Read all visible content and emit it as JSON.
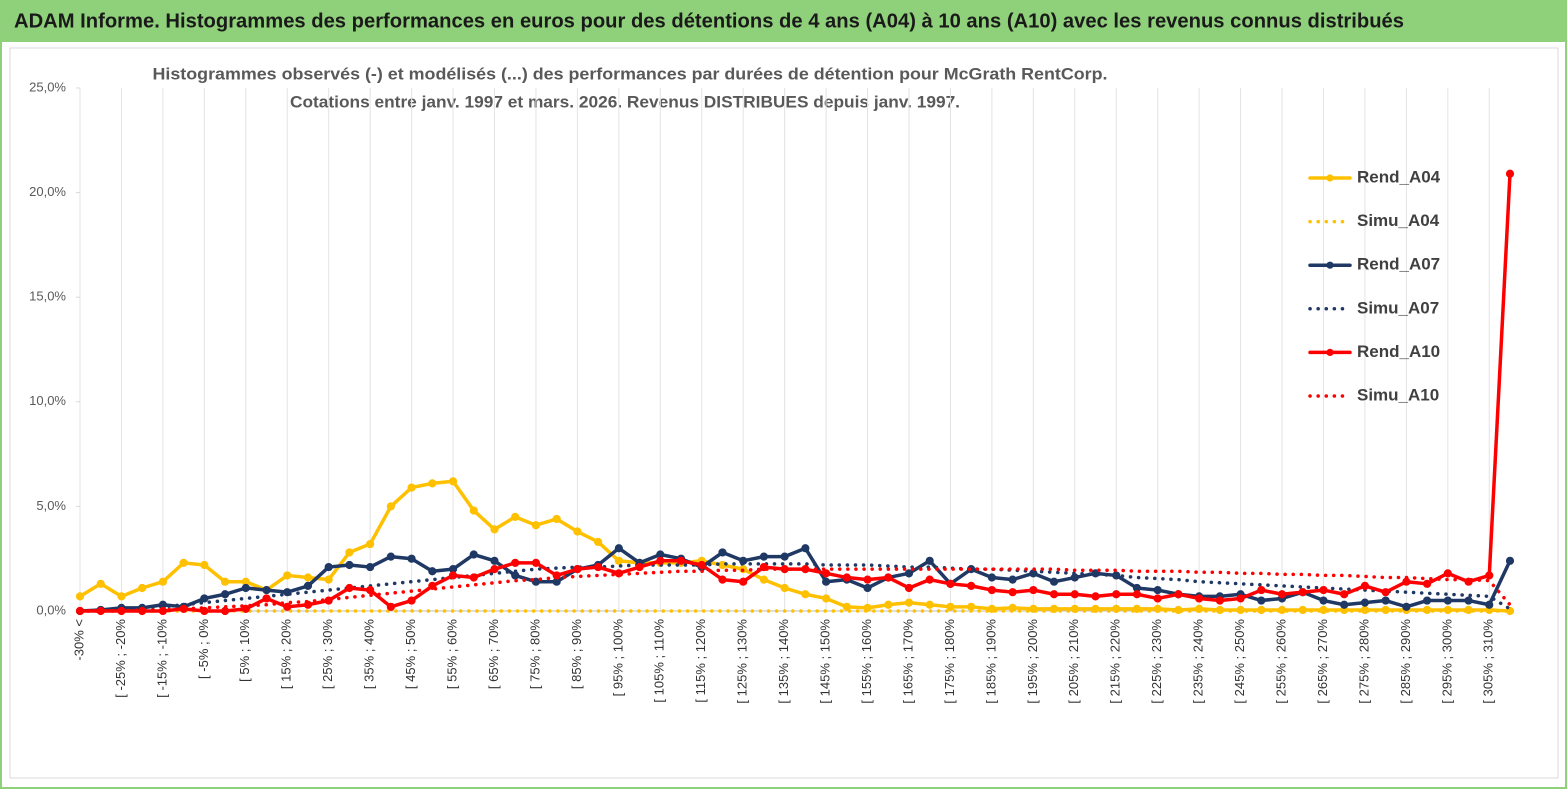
{
  "chart_data": {
    "type": "line",
    "title": "ADAM Informe. Histogrammes des performances en euros pour des détentions de 4 ans (A04) à 10 ans (A10) avec les revenus connus distribués",
    "subtitle": [
      "Histogrammes observés (-)  et modélisés (...) des performances par durées de détention pour McGrath RentCorp.",
      "Cotations entre janv. 1997 et mars. 2026. Revenus DISTRIBUES depuis janv. 1997."
    ],
    "categories": [
      "-30% <",
      null,
      "[ -25% ; -20%",
      null,
      "[ -15% ; -10%",
      null,
      "[ -5% ; 0%",
      null,
      "[ 5% ; 10%",
      null,
      "[ 15% ; 20%",
      null,
      "[ 25% ; 30%",
      null,
      "[ 35% ; 40%",
      null,
      "[ 45% ; 50%",
      null,
      "[ 55% ; 60%",
      null,
      "[ 65% ; 70%",
      null,
      "[ 75% ; 80%",
      null,
      "[ 85% ; 90%",
      null,
      "[ 95% ; 100%",
      null,
      "[ 105% ; 110%",
      null,
      "[ 115% ; 120%",
      null,
      "[ 125% ; 130%",
      null,
      "[ 135% ; 140%",
      null,
      "[ 145% ; 150%",
      null,
      "[ 155% ; 160%",
      null,
      "[ 165% ; 170%",
      null,
      "[ 175% ; 180%",
      null,
      "[ 185% ; 190%",
      null,
      "[ 195% ; 200%",
      null,
      "[ 205% ; 210%",
      null,
      "[ 215% ; 220%",
      null,
      "[ 225% ; 230%",
      null,
      "[ 235% ; 240%",
      null,
      "[ 245% ; 250%",
      null,
      "[ 255% ; 260%",
      null,
      "[ 265% ; 270%",
      null,
      "[ 275% ; 280%",
      null,
      "[ 285% ; 290%",
      null,
      "[ 295% ; 300%",
      null,
      "[ 305% ; 310%",
      null
    ],
    "series": [
      {
        "name": "Rend_A04",
        "color": "#ffc000",
        "style": "solid",
        "values": [
          0.7,
          1.3,
          0.7,
          1.1,
          1.4,
          2.3,
          2.2,
          1.4,
          1.4,
          1.0,
          1.7,
          1.6,
          1.5,
          2.8,
          3.2,
          5.0,
          5.9,
          6.1,
          6.2,
          4.8,
          3.9,
          4.5,
          4.1,
          4.4,
          3.8,
          3.3,
          2.4,
          2.3,
          2.3,
          2.3,
          2.4,
          2.2,
          2.0,
          1.5,
          1.1,
          0.8,
          0.6,
          0.2,
          0.15,
          0.3,
          0.4,
          0.3,
          0.2,
          0.2,
          0.1,
          0.15,
          0.1,
          0.1,
          0.1,
          0.1,
          0.1,
          0.1,
          0.1,
          0.05,
          0.1,
          0.05,
          0.05,
          0.05,
          0.05,
          0.05,
          0.05,
          0.05,
          0.05,
          0.05,
          0.05,
          0.05,
          0.05,
          0.05,
          0.05,
          0.0
        ]
      },
      {
        "name": "Simu_A04",
        "color": "#ffc000",
        "style": "dotted",
        "values": [
          0,
          0,
          0,
          0,
          0,
          0,
          0,
          0,
          0,
          0,
          0,
          0,
          0,
          0,
          0,
          0,
          0,
          0,
          0,
          0,
          0,
          0,
          0,
          0,
          0,
          0,
          0,
          0,
          0,
          0,
          0,
          0,
          0,
          0,
          0,
          0,
          0,
          0,
          0,
          0,
          0,
          0,
          0,
          0,
          0,
          0,
          0,
          0,
          0,
          0,
          0,
          0,
          0,
          0,
          0,
          0,
          0,
          0,
          0,
          0,
          0,
          0,
          0,
          0,
          0,
          0,
          0,
          0,
          0,
          0
        ]
      },
      {
        "name": "Rend_A07",
        "color": "#1f3864",
        "style": "solid",
        "values": [
          0,
          0.05,
          0.15,
          0.15,
          0.3,
          0.2,
          0.6,
          0.8,
          1.1,
          1.0,
          0.9,
          1.2,
          2.1,
          2.2,
          2.1,
          2.6,
          2.5,
          1.9,
          2.0,
          2.7,
          2.4,
          1.7,
          1.4,
          1.4,
          2.0,
          2.2,
          3.0,
          2.3,
          2.7,
          2.5,
          2.1,
          2.8,
          2.4,
          2.6,
          2.6,
          3.0,
          1.4,
          1.5,
          1.1,
          1.6,
          1.8,
          2.4,
          1.3,
          2.0,
          1.6,
          1.5,
          1.8,
          1.4,
          1.6,
          1.8,
          1.7,
          1.1,
          1.0,
          0.8,
          0.7,
          0.7,
          0.8,
          0.5,
          0.6,
          0.9,
          0.5,
          0.3,
          0.4,
          0.5,
          0.2,
          0.5,
          0.5,
          0.5,
          0.3,
          2.4
        ]
      },
      {
        "name": "Simu_A07",
        "color": "#1f3864",
        "style": "dotted",
        "values": [
          0,
          0.05,
          0.1,
          0.15,
          0.2,
          0.3,
          0.4,
          0.5,
          0.6,
          0.7,
          0.8,
          0.9,
          1.0,
          1.1,
          1.2,
          1.3,
          1.4,
          1.5,
          1.6,
          1.7,
          1.8,
          1.9,
          2.0,
          2.05,
          2.1,
          2.1,
          2.15,
          2.2,
          2.2,
          2.2,
          2.2,
          2.25,
          2.25,
          2.25,
          2.25,
          2.25,
          2.2,
          2.2,
          2.2,
          2.15,
          2.1,
          2.1,
          2.05,
          2.0,
          2.0,
          1.95,
          1.9,
          1.85,
          1.8,
          1.75,
          1.7,
          1.6,
          1.55,
          1.5,
          1.4,
          1.35,
          1.3,
          1.25,
          1.2,
          1.15,
          1.1,
          1.05,
          1.0,
          0.95,
          0.9,
          0.85,
          0.8,
          0.75,
          0.7,
          0.1
        ]
      },
      {
        "name": "Rend_A10",
        "color": "#ff0000",
        "style": "solid",
        "values": [
          0,
          0,
          0,
          0,
          0,
          0.1,
          0,
          0,
          0.1,
          0.6,
          0.2,
          0.3,
          0.5,
          1.1,
          1.0,
          0.2,
          0.5,
          1.2,
          1.7,
          1.6,
          2.0,
          2.3,
          2.3,
          1.7,
          2.0,
          2.1,
          1.8,
          2.1,
          2.4,
          2.4,
          2.2,
          1.5,
          1.4,
          2.1,
          2.0,
          2.0,
          1.8,
          1.6,
          1.5,
          1.6,
          1.1,
          1.5,
          1.3,
          1.2,
          1.0,
          0.9,
          1.0,
          0.8,
          0.8,
          0.7,
          0.8,
          0.8,
          0.6,
          0.8,
          0.6,
          0.5,
          0.6,
          1.0,
          0.8,
          0.9,
          1.0,
          0.8,
          1.2,
          0.9,
          1.4,
          1.3,
          1.8,
          1.4,
          1.7,
          20.9
        ]
      },
      {
        "name": "Simu_A10",
        "color": "#ff0000",
        "style": "dotted",
        "values": [
          0,
          0,
          0,
          0.05,
          0.05,
          0.1,
          0.15,
          0.2,
          0.25,
          0.3,
          0.4,
          0.45,
          0.55,
          0.65,
          0.75,
          0.85,
          0.95,
          1.05,
          1.15,
          1.25,
          1.35,
          1.45,
          1.5,
          1.6,
          1.65,
          1.7,
          1.75,
          1.8,
          1.85,
          1.9,
          1.9,
          1.95,
          1.95,
          2.0,
          2.0,
          2.0,
          2.0,
          2.0,
          2.0,
          2.0,
          2.0,
          2.0,
          2.0,
          2.0,
          2.0,
          2.0,
          2.0,
          2.0,
          1.95,
          1.95,
          1.95,
          1.9,
          1.9,
          1.9,
          1.85,
          1.85,
          1.8,
          1.8,
          1.75,
          1.75,
          1.7,
          1.7,
          1.65,
          1.6,
          1.6,
          1.55,
          1.5,
          1.5,
          1.45,
          0.3
        ]
      }
    ],
    "ylim": [
      0,
      25
    ],
    "yticks": [
      {
        "value": 0,
        "label": "0,0%"
      },
      {
        "value": 5,
        "label": "5,0%"
      },
      {
        "value": 10,
        "label": "10,0%"
      },
      {
        "value": 15,
        "label": "15,0%"
      },
      {
        "value": 20,
        "label": "20,0%"
      },
      {
        "value": 25,
        "label": "25,0%"
      }
    ],
    "vertical_grid": true,
    "legend": "right"
  }
}
